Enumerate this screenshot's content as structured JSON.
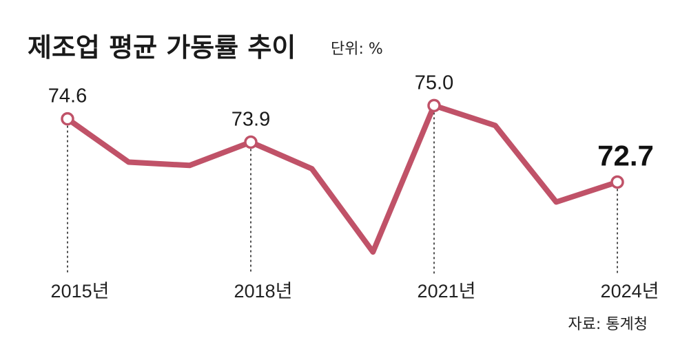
{
  "chart_data": {
    "type": "line",
    "title": "제조업 평균 가동률 추이",
    "unit_label": "단위: %",
    "source": "자료: 통계청",
    "x": [
      2015,
      2016,
      2017,
      2018,
      2019,
      2020,
      2021,
      2022,
      2023,
      2024
    ],
    "values": [
      74.6,
      73.3,
      73.2,
      73.9,
      73.1,
      70.6,
      75.0,
      74.4,
      72.1,
      72.7
    ],
    "tick_labels": [
      {
        "year": 2015,
        "label": "2015년"
      },
      {
        "year": 2018,
        "label": "2018년"
      },
      {
        "year": 2021,
        "label": "2021년"
      },
      {
        "year": 2024,
        "label": "2024년"
      }
    ],
    "data_labels": [
      {
        "year": 2015,
        "label": "74.6"
      },
      {
        "year": 2018,
        "label": "73.9"
      },
      {
        "year": 2021,
        "label": "75.0"
      },
      {
        "year": 2024,
        "label": "72.7"
      }
    ],
    "highlight_year": 2024,
    "ylim": [
      70,
      76
    ],
    "line_color": "#c05268",
    "marker_fill": "#ffffff"
  }
}
